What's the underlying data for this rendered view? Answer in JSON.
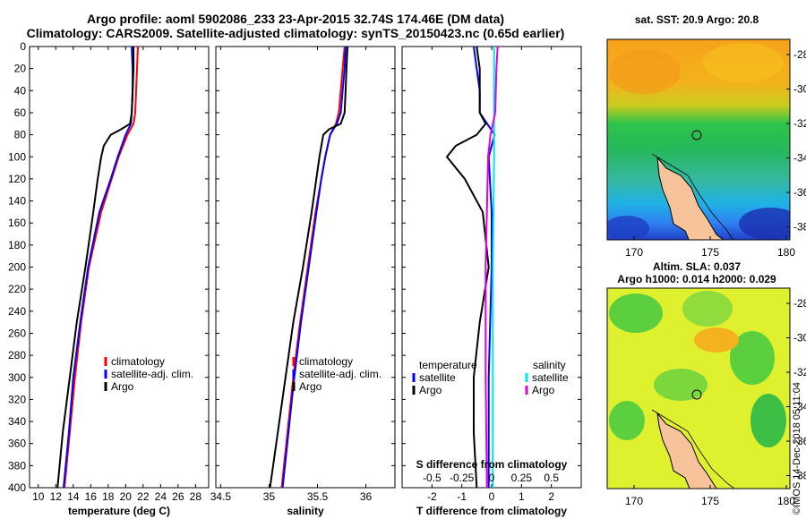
{
  "header": {
    "title_line1": "Argo profile: aoml 5902086_233 23-Apr-2015 32.74S 174.46E (DM data)",
    "title_line2": "Climatology: CARS2009. Satellite-adjusted climatology: synTS_20150423.nc (0.65d earlier)"
  },
  "colors": {
    "climatology": "#ff0000",
    "satellite": "#0000ff",
    "argo": "#000000",
    "sat_salinity": "#00e5ee",
    "climatology_salinity": "#e000e0"
  },
  "map_top": {
    "title": "sat. SST: 20.9 Argo: 20.8",
    "lat_ticks": [
      "-28",
      "-30",
      "-32",
      "-34",
      "-36",
      "-38"
    ],
    "lon_ticks": [
      "170",
      "175",
      "180"
    ]
  },
  "map_bottom": {
    "title_line1": "Altim. SLA: 0.037",
    "title_line2": "Argo h1000: 0.014 h2000: 0.029",
    "lat_ticks": [
      "-28",
      "-30",
      "-32",
      "-34",
      "-36",
      "-38"
    ],
    "lon_ticks": [
      "170",
      "175",
      "180"
    ]
  },
  "credit": "©IMOS 14-Dec-2018 05:11:04",
  "chart_data": [
    {
      "type": "line",
      "title": "",
      "xlabel": "temperature (deg C)",
      "ylabel": "",
      "xlim": [
        9,
        29.5
      ],
      "ylim": [
        400,
        0
      ],
      "x_ticks": [
        10,
        12,
        14,
        16,
        18,
        20,
        22,
        24,
        26,
        28
      ],
      "y_ticks": [
        0,
        20,
        40,
        60,
        80,
        100,
        120,
        140,
        160,
        180,
        200,
        220,
        240,
        260,
        280,
        300,
        320,
        340,
        360,
        380,
        400
      ],
      "legend": [
        "climatology",
        "satellite-adj. clim.",
        "Argo"
      ],
      "series": [
        {
          "name": "climatology",
          "color": "#ff0000",
          "depth": [
            0,
            20,
            40,
            60,
            70,
            80,
            100,
            120,
            150,
            200,
            250,
            300,
            350,
            400
          ],
          "values": [
            21.4,
            21.3,
            21.2,
            21.1,
            20.9,
            20.2,
            19.2,
            18.4,
            17.2,
            15.8,
            14.9,
            14.2,
            13.6,
            13.0
          ]
        },
        {
          "name": "satellite-adj. clim.",
          "color": "#0000ff",
          "depth": [
            0,
            20,
            40,
            60,
            70,
            80,
            100,
            120,
            150,
            200,
            250,
            300,
            350,
            400
          ],
          "values": [
            20.7,
            20.8,
            20.8,
            20.7,
            20.6,
            20.0,
            19.1,
            18.3,
            17.0,
            15.7,
            14.8,
            14.0,
            13.5,
            12.9
          ]
        },
        {
          "name": "Argo",
          "color": "#000000",
          "depth": [
            0,
            20,
            40,
            60,
            70,
            75,
            80,
            90,
            100,
            120,
            150,
            200,
            250,
            300,
            350,
            400
          ],
          "values": [
            20.9,
            20.9,
            20.8,
            20.7,
            20.5,
            19.5,
            18.3,
            17.5,
            17.2,
            16.8,
            16.3,
            15.4,
            14.4,
            13.6,
            12.8,
            12.2
          ]
        }
      ]
    },
    {
      "type": "line",
      "title": "",
      "xlabel": "salinity",
      "ylabel": "",
      "xlim": [
        34.45,
        36.3
      ],
      "ylim": [
        400,
        0
      ],
      "x_ticks": [
        34.5,
        35,
        35.5,
        36
      ],
      "x_tick_labels": [
        "34.5",
        "35",
        "35.5",
        "36"
      ],
      "legend": [
        "climatology",
        "satellite-adj. clim.",
        "Argo"
      ],
      "series": [
        {
          "name": "climatology",
          "color": "#ff0000",
          "depth": [
            0,
            20,
            40,
            60,
            70,
            80,
            100,
            120,
            150,
            200,
            250,
            300,
            350,
            400
          ],
          "values": [
            35.78,
            35.76,
            35.74,
            35.72,
            35.69,
            35.63,
            35.58,
            35.54,
            35.48,
            35.4,
            35.32,
            35.25,
            35.19,
            35.13
          ]
        },
        {
          "name": "satellite-adj. clim.",
          "color": "#0000ff",
          "depth": [
            0,
            20,
            40,
            60,
            70,
            80,
            100,
            120,
            150,
            200,
            250,
            300,
            350,
            400
          ],
          "values": [
            35.79,
            35.78,
            35.76,
            35.74,
            35.7,
            35.63,
            35.58,
            35.54,
            35.49,
            35.41,
            35.33,
            35.26,
            35.2,
            35.14
          ]
        },
        {
          "name": "Argo",
          "color": "#000000",
          "depth": [
            0,
            20,
            40,
            60,
            70,
            75,
            80,
            100,
            150,
            200,
            250,
            300,
            350,
            400
          ],
          "values": [
            35.81,
            35.8,
            35.79,
            35.78,
            35.74,
            35.62,
            35.56,
            35.52,
            35.44,
            35.35,
            35.25,
            35.17,
            35.09,
            35.01
          ]
        }
      ]
    },
    {
      "type": "line",
      "title": "",
      "xlabel": "T difference from climatology",
      "xlabel2": "S difference from climatology",
      "xlim": [
        -3,
        3
      ],
      "ylim": [
        400,
        0
      ],
      "x_ticks": [
        -2,
        -1,
        0,
        1,
        2
      ],
      "x_tick_labels": [
        "-2",
        "-1",
        "0",
        "1",
        "2"
      ],
      "s_ticks": [
        -0.5,
        -0.25,
        0,
        0.25,
        0.5
      ],
      "s_tick_labels": [
        "-0.5",
        "-0.25",
        "0",
        "0.25",
        "0.5"
      ],
      "legend_temperature_title": "temperature",
      "legend_salinity_title": "salinity",
      "legend_temperature": [
        "satellite",
        "Argo"
      ],
      "legend_salinity": [
        "satellite",
        "Argo"
      ],
      "series": [
        {
          "name": "T satellite",
          "color": "#0000ff",
          "depth": [
            0,
            20,
            40,
            60,
            80,
            100,
            150,
            200,
            300,
            400
          ],
          "values": [
            -0.6,
            -0.5,
            -0.4,
            -0.4,
            0.1,
            -0.1,
            0.0,
            0.0,
            -0.1,
            -0.1
          ]
        },
        {
          "name": "T Argo",
          "color": "#000000",
          "depth": [
            0,
            20,
            40,
            60,
            70,
            80,
            90,
            100,
            120,
            150,
            200,
            250,
            300,
            350,
            400
          ],
          "values": [
            -0.5,
            -0.4,
            -0.4,
            -0.4,
            -0.2,
            -0.5,
            -1.2,
            -1.5,
            -0.9,
            -0.3,
            -0.1,
            -0.4,
            -0.6,
            -0.6,
            -0.5
          ]
        },
        {
          "name": "S satellite",
          "color": "#00e5ee",
          "depth": [
            0,
            20,
            60,
            100,
            200,
            300,
            400
          ],
          "values": [
            0.02,
            0.02,
            0.02,
            0.02,
            0.01,
            0.01,
            0.01
          ]
        },
        {
          "name": "S Argo",
          "color": "#e000e0",
          "depth": [
            0,
            20,
            60,
            80,
            100,
            150,
            200,
            300,
            400
          ],
          "values": [
            0.05,
            0.04,
            0.03,
            -0.01,
            -0.03,
            -0.04,
            -0.05,
            -0.05,
            -0.04
          ]
        }
      ]
    }
  ]
}
